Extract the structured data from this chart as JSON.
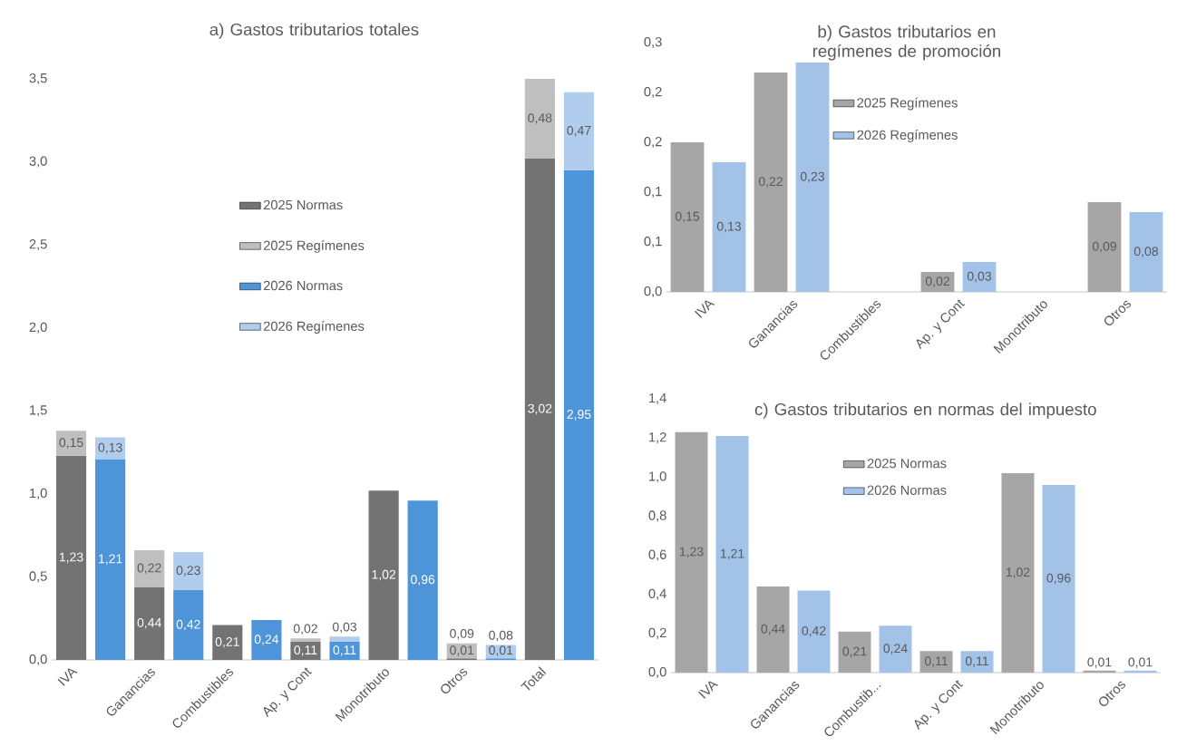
{
  "chart_data": [
    {
      "type": "bar",
      "title": "a) Gastos tributarios totales",
      "stacked": true,
      "legend": "top",
      "categories": [
        "IVA",
        null,
        "Ganancias",
        null,
        "Combustibles",
        null,
        "Ap. y Cont",
        null,
        "Monotributo",
        null,
        "Otros",
        null,
        "Total",
        null
      ],
      "ylim": [
        0,
        3.5
      ],
      "yticks": [
        {
          "value": 0,
          "label": "0,0"
        },
        {
          "value": 0.5,
          "label": "0,5"
        },
        {
          "value": 1,
          "label": "1,0"
        },
        {
          "value": 1.5,
          "label": "1,5"
        },
        {
          "value": 2,
          "label": "2,0"
        },
        {
          "value": 2.5,
          "label": "2,5"
        },
        {
          "value": 3,
          "label": "3,0"
        },
        {
          "value": 3.5,
          "label": "3,5"
        }
      ],
      "series": [
        {
          "name": "2025 Normas",
          "color": "#737373",
          "values": [
            1.23,
            null,
            0.44,
            null,
            0.21,
            null,
            0.11,
            null,
            1.02,
            null,
            0.01,
            null,
            3.02,
            null
          ],
          "value_labels": [
            "1,23",
            null,
            "0,44",
            null,
            "0,21",
            null,
            "0,11",
            null,
            "1,02",
            null,
            "0,01",
            null,
            "3,02",
            null
          ]
        },
        {
          "name": "2025 Regímenes",
          "color": "#bfbfbf",
          "values": [
            0.15,
            null,
            0.22,
            null,
            null,
            null,
            0.02,
            null,
            null,
            null,
            0.09,
            null,
            0.48,
            null
          ],
          "value_labels": [
            "0,15",
            null,
            "0,22",
            null,
            null,
            null,
            "0,02",
            null,
            null,
            null,
            "0,09",
            null,
            "0,48",
            null
          ]
        },
        {
          "name": "2026 Normas",
          "color": "#4d94d9",
          "values": [
            null,
            1.21,
            null,
            0.42,
            null,
            0.24,
            null,
            0.11,
            null,
            0.96,
            null,
            0.01,
            null,
            2.95
          ],
          "value_labels": [
            null,
            "1,21",
            null,
            "0,42",
            null,
            "0,24",
            null,
            "0,11",
            null,
            "0,96",
            null,
            "0,01",
            null,
            "2,95"
          ]
        },
        {
          "name": "2026 Regímenes",
          "color": "#b0cdee",
          "values": [
            null,
            0.13,
            null,
            0.23,
            null,
            null,
            null,
            0.03,
            null,
            null,
            null,
            0.08,
            null,
            0.47
          ],
          "value_labels": [
            null,
            "0,13",
            null,
            "0,23",
            null,
            null,
            null,
            "0,03",
            null,
            null,
            null,
            "0,08",
            null,
            "0,47"
          ]
        }
      ]
    },
    {
      "type": "bar",
      "title": "b) Gastos tributarios en regímenes de promoción",
      "legend": "top",
      "categories": [
        "IVA",
        "Ganancias",
        "Combustibles",
        "Ap. y Cont",
        "Monotributo",
        "Otros"
      ],
      "ylim": [
        0,
        0.25
      ],
      "yticks": [
        {
          "value": 0,
          "label": "0,0"
        },
        {
          "value": 0.05,
          "label": "0,1"
        },
        {
          "value": 0.1,
          "label": "0,1"
        },
        {
          "value": 0.15,
          "label": "0,2"
        },
        {
          "value": 0.2,
          "label": "0,2"
        },
        {
          "value": 0.25,
          "label": "0,3"
        }
      ],
      "series": [
        {
          "name": "2025 Regímenes",
          "color": "#a6a6a6",
          "values": [
            0.15,
            0.22,
            null,
            0.02,
            null,
            0.09
          ],
          "value_labels": [
            "0,15",
            "0,22",
            null,
            "0,02",
            null,
            "0,09"
          ]
        },
        {
          "name": "2026 Regímenes",
          "color": "#a3c2e8",
          "values": [
            0.13,
            0.23,
            null,
            0.03,
            null,
            0.08
          ],
          "value_labels": [
            "0,13",
            "0,23",
            null,
            "0,03",
            null,
            "0,08"
          ]
        }
      ]
    },
    {
      "type": "bar",
      "title": "c) Gastos tributarios en normas del impuesto",
      "legend": "top",
      "categories": [
        "IVA",
        "Ganancias",
        "Combustib...",
        "Ap. y Cont",
        "Monotributo",
        "Otros"
      ],
      "ylim": [
        0,
        1.4
      ],
      "yticks": [
        {
          "value": 0,
          "label": "0,0"
        },
        {
          "value": 0.2,
          "label": "0,2"
        },
        {
          "value": 0.4,
          "label": "0,4"
        },
        {
          "value": 0.6,
          "label": "0,6"
        },
        {
          "value": 0.8,
          "label": "0,8"
        },
        {
          "value": 1,
          "label": "1,0"
        },
        {
          "value": 1.2,
          "label": "1,2"
        },
        {
          "value": 1.4,
          "label": "1,4"
        }
      ],
      "series": [
        {
          "name": "2025 Normas",
          "color": "#a6a6a6",
          "values": [
            1.23,
            0.44,
            0.21,
            0.11,
            1.02,
            0.01
          ],
          "value_labels": [
            "1,23",
            "0,44",
            "0,21",
            "0,11",
            "1,02",
            "0,01"
          ]
        },
        {
          "name": "2026 Normas",
          "color": "#a3c2e8",
          "values": [
            1.21,
            0.42,
            0.24,
            0.11,
            0.96,
            0.01
          ],
          "value_labels": [
            "1,21",
            "0,42",
            "0,24",
            "0,11",
            "0,96",
            "0,01"
          ]
        }
      ]
    }
  ]
}
